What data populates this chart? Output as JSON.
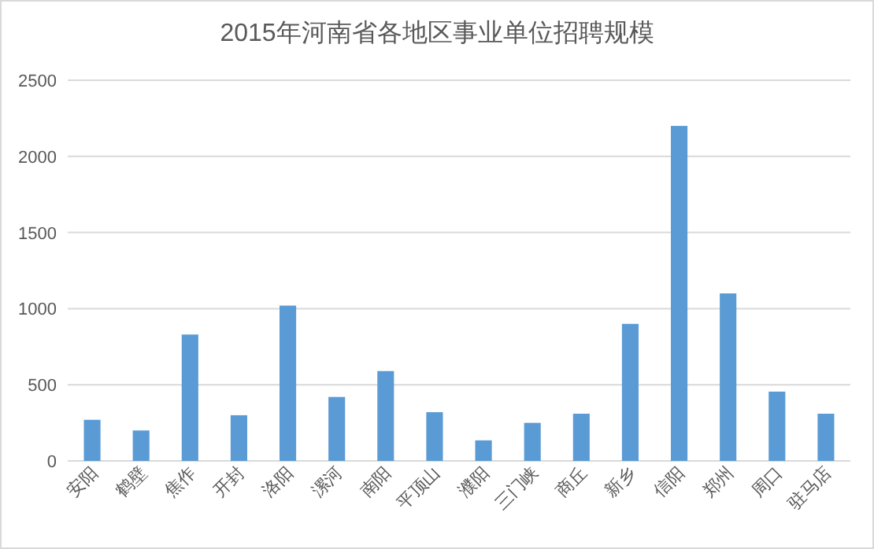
{
  "chart_data": {
    "type": "bar",
    "title": "2015年河南省各地区事业单位招聘规模",
    "categories": [
      "安阳",
      "鹤壁",
      "焦作",
      "开封",
      "洛阳",
      "漯河",
      "南阳",
      "平顶山",
      "濮阳",
      "三门峡",
      "商丘",
      "新乡",
      "信阳",
      "郑州",
      "周口",
      "驻马店"
    ],
    "values": [
      270,
      200,
      830,
      300,
      1020,
      420,
      590,
      320,
      135,
      250,
      310,
      900,
      2200,
      1100,
      455,
      310
    ],
    "color": "#5b9bd5",
    "ylim": [
      0,
      2500
    ],
    "yticks": [
      0,
      500,
      1000,
      1500,
      2000,
      2500
    ],
    "grid": "y"
  }
}
